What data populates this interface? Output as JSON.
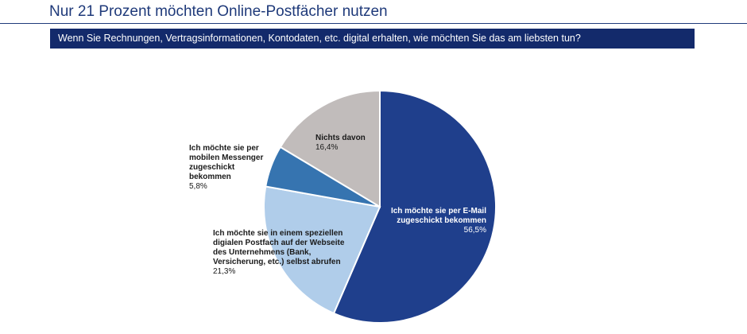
{
  "title": "Nur 21 Prozent möchten Online-Postfächer nutzen",
  "question": "Wenn Sie Rechnungen, Vertragsinformationen, Kontodaten, etc. digital erhalten, wie möchten Sie das am liebsten tun?",
  "colors": {
    "title": "#1f3a7a",
    "question_bg": "#132a6b",
    "email": "#1f3f8c",
    "postfach": "#b0cdea",
    "messenger": "#3674b0",
    "nichts": "#c1bcbb"
  },
  "chart_data": {
    "type": "pie",
    "start_angle_deg": 0,
    "direction": "clockwise",
    "slices": [
      {
        "label_lines": [
          "Ich möchte sie per E-Mail",
          "zugeschickt bekommen"
        ],
        "value_label": "56,5%",
        "value": 56.5,
        "color": "#1f3f8c",
        "label_text_color": "#ffffff"
      },
      {
        "label_lines": [
          "Ich möchte sie in einem speziellen",
          "digialen Postfach auf der Webseite",
          "des Unternehmens (Bank,",
          "Versicherung, etc.) selbst abrufen"
        ],
        "value_label": "21,3%",
        "value": 21.3,
        "color": "#b0cdea",
        "label_text_color": "#1a1a1a"
      },
      {
        "label_lines": [
          "Ich möchte sie per",
          "mobilen Messenger",
          "zugeschickt",
          "bekommen"
        ],
        "value_label": "5,8%",
        "value": 5.8,
        "color": "#3674b0",
        "label_text_color": "#1a1a1a"
      },
      {
        "label_lines": [
          "Nichts davon"
        ],
        "value_label": "16,4%",
        "value": 16.4,
        "color": "#c1bcbb",
        "label_text_color": "#1a1a1a"
      }
    ]
  }
}
